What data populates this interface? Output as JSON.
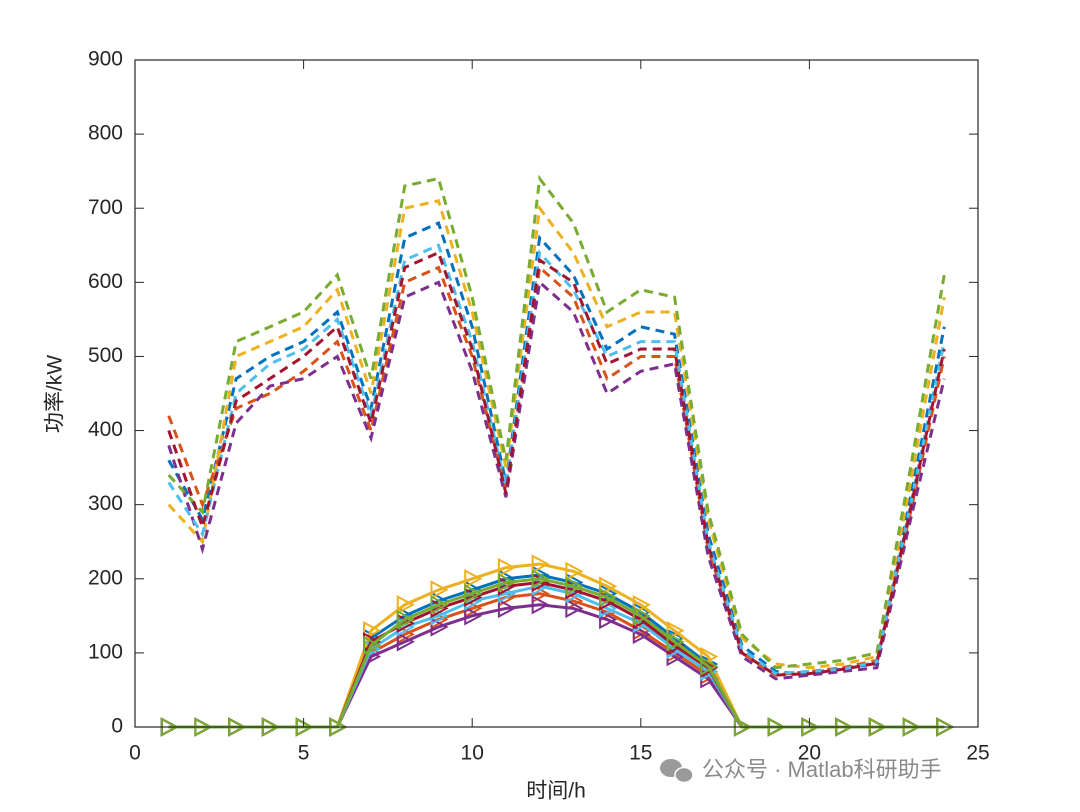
{
  "chart_data": {
    "type": "line",
    "xlabel": "时间/h",
    "ylabel": "功率/kW",
    "watermark": "公众号 · Matlab科研助手",
    "x": [
      1,
      2,
      3,
      4,
      5,
      6,
      7,
      8,
      9,
      10,
      11,
      12,
      13,
      14,
      15,
      16,
      17,
      18,
      19,
      20,
      21,
      22,
      23,
      24
    ],
    "xlim": [
      0,
      25
    ],
    "xticks": [
      0,
      5,
      10,
      15,
      20,
      25
    ],
    "ylim": [
      0,
      900
    ],
    "yticks": [
      0,
      100,
      200,
      300,
      400,
      500,
      600,
      700,
      800,
      900
    ],
    "grid": false,
    "series": [
      {
        "color": "#0072BD",
        "style": "dashed",
        "values": [
          360,
          280,
          470,
          500,
          520,
          560,
          430,
          660,
          680,
          540,
          330,
          660,
          610,
          510,
          540,
          530,
          260,
          110,
          75,
          70,
          80,
          85,
          310,
          540
        ]
      },
      {
        "color": "#D95319",
        "style": "dashed",
        "values": [
          420,
          300,
          430,
          450,
          480,
          520,
          400,
          600,
          620,
          500,
          320,
          620,
          580,
          470,
          500,
          500,
          240,
          100,
          70,
          75,
          80,
          90,
          290,
          500
        ]
      },
      {
        "color": "#EDB120",
        "style": "dashed",
        "values": [
          300,
          250,
          500,
          520,
          540,
          590,
          450,
          700,
          710,
          560,
          350,
          700,
          640,
          540,
          560,
          560,
          280,
          120,
          85,
          80,
          85,
          95,
          330,
          580
        ]
      },
      {
        "color": "#7E2F8E",
        "style": "dashed",
        "values": [
          380,
          240,
          410,
          460,
          470,
          500,
          390,
          580,
          600,
          480,
          310,
          600,
          560,
          450,
          480,
          490,
          230,
          95,
          65,
          70,
          75,
          80,
          280,
          470
        ]
      },
      {
        "color": "#77AC30",
        "style": "dashed",
        "values": [
          340,
          290,
          520,
          540,
          560,
          610,
          470,
          730,
          740,
          580,
          360,
          740,
          680,
          560,
          590,
          580,
          290,
          125,
          80,
          85,
          90,
          100,
          350,
          610
        ]
      },
      {
        "color": "#4DBEEE",
        "style": "dashed",
        "values": [
          330,
          260,
          450,
          490,
          510,
          550,
          420,
          630,
          650,
          520,
          325,
          640,
          590,
          500,
          520,
          520,
          250,
          105,
          72,
          75,
          78,
          88,
          300,
          520
        ]
      },
      {
        "color": "#A2142F",
        "style": "dashed",
        "values": [
          400,
          270,
          440,
          470,
          500,
          540,
          410,
          620,
          640,
          510,
          315,
          630,
          600,
          490,
          510,
          510,
          245,
          100,
          70,
          72,
          78,
          86,
          295,
          510
        ]
      },
      {
        "color": "#0072BD",
        "style": "solid",
        "marker": "triangle-right",
        "values": [
          0,
          0,
          0,
          0,
          0,
          0,
          120,
          150,
          170,
          185,
          200,
          205,
          195,
          180,
          155,
          120,
          85,
          0,
          0,
          0,
          0,
          0,
          0,
          0
        ]
      },
      {
        "color": "#D95319",
        "style": "solid",
        "marker": "triangle-right",
        "values": [
          0,
          0,
          0,
          0,
          0,
          0,
          100,
          125,
          145,
          160,
          175,
          180,
          170,
          155,
          130,
          100,
          70,
          0,
          0,
          0,
          0,
          0,
          0,
          0
        ]
      },
      {
        "color": "#EDB120",
        "style": "solid",
        "marker": "triangle-right",
        "values": [
          0,
          0,
          0,
          0,
          0,
          0,
          130,
          165,
          185,
          200,
          215,
          220,
          210,
          190,
          165,
          130,
          95,
          0,
          0,
          0,
          0,
          0,
          0,
          0
        ]
      },
      {
        "color": "#7E2F8E",
        "style": "solid",
        "marker": "triangle-right",
        "values": [
          0,
          0,
          0,
          0,
          0,
          0,
          95,
          115,
          135,
          150,
          160,
          165,
          160,
          145,
          125,
          95,
          65,
          0,
          0,
          0,
          0,
          0,
          0,
          0
        ]
      },
      {
        "color": "#4DBEEE",
        "style": "solid",
        "marker": "triangle-right",
        "values": [
          0,
          0,
          0,
          0,
          0,
          0,
          105,
          135,
          150,
          170,
          180,
          190,
          180,
          160,
          140,
          105,
          75,
          0,
          0,
          0,
          0,
          0,
          0,
          0
        ]
      },
      {
        "color": "#A2142F",
        "style": "solid",
        "marker": "triangle-right",
        "values": [
          0,
          0,
          0,
          0,
          0,
          0,
          115,
          140,
          160,
          175,
          190,
          195,
          185,
          170,
          145,
          110,
          80,
          0,
          0,
          0,
          0,
          0,
          0,
          0
        ]
      },
      {
        "color": "#77AC30",
        "style": "solid",
        "marker": "triangle-right",
        "values": [
          0,
          0,
          0,
          0,
          0,
          0,
          110,
          145,
          165,
          180,
          195,
          200,
          190,
          175,
          150,
          115,
          82,
          0,
          0,
          0,
          0,
          0,
          0,
          0
        ]
      }
    ]
  }
}
